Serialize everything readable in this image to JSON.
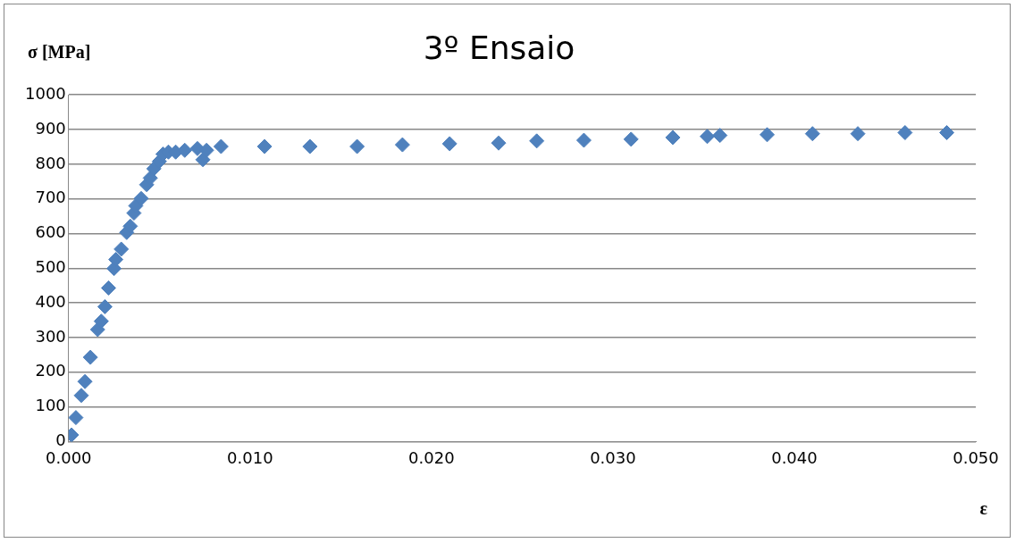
{
  "chart_data": {
    "type": "scatter",
    "title": "3º Ensaio",
    "xlabel": "ε",
    "ylabel": "σ [MPa]",
    "xlim": [
      0,
      0.05
    ],
    "xticks": [
      {
        "value": 0,
        "label": "0.000"
      },
      {
        "value": 0.01,
        "label": "0.010"
      },
      {
        "value": 0.02,
        "label": "0.020"
      },
      {
        "value": 0.03,
        "label": "0.030"
      },
      {
        "value": 0.04,
        "label": "0.040"
      },
      {
        "value": 0.05,
        "label": "0.050"
      }
    ],
    "ylim": [
      0,
      1000
    ],
    "yticks": [
      0,
      100,
      200,
      300,
      400,
      500,
      600,
      700,
      800,
      900,
      1000
    ],
    "grid": "y",
    "legend": false,
    "marker": "diamond",
    "series": [
      {
        "color": "#4f81bd",
        "x": [
          0.00016,
          0.0004,
          0.0007,
          0.0009,
          0.0012,
          0.0016,
          0.0018,
          0.002,
          0.0022,
          0.0025,
          0.0026,
          0.0029,
          0.0032,
          0.0034,
          0.0036,
          0.0037,
          0.004,
          0.0043,
          0.0045,
          0.0047,
          0.005,
          0.0052,
          0.0055,
          0.0059,
          0.0064,
          0.0071,
          0.0074,
          0.0076,
          0.0084,
          0.0108,
          0.0133,
          0.0159,
          0.0184,
          0.021,
          0.0237,
          0.0258,
          0.0284,
          0.031,
          0.0333,
          0.0352,
          0.0359,
          0.0385,
          0.041,
          0.0435,
          0.0461,
          0.0484
        ],
        "values": [
          19,
          69,
          133,
          173,
          243,
          323,
          347,
          389,
          443,
          499,
          525,
          555,
          603,
          621,
          659,
          680,
          701,
          741,
          760,
          787,
          808,
          829,
          835,
          835,
          840,
          845,
          813,
          840,
          851,
          851,
          851,
          851,
          856,
          859,
          861,
          867,
          869,
          872,
          877,
          880,
          883,
          885,
          888,
          888,
          891,
          891
        ]
      }
    ]
  }
}
